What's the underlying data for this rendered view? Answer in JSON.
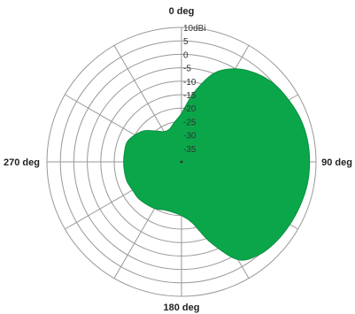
{
  "chart_data": {
    "type": "polar-area",
    "title": "",
    "radial_axis": {
      "unit": "dBi",
      "min": -40,
      "max": 10,
      "step": 5,
      "tick_labels": [
        "10dBi",
        "5",
        "0",
        "-5",
        "-10",
        "-15",
        "-20",
        "-25",
        "-30",
        "-35"
      ]
    },
    "angular_labels": [
      {
        "angle": 0,
        "label": "0 deg"
      },
      {
        "angle": 90,
        "label": "90 deg"
      },
      {
        "angle": 180,
        "label": "180 deg"
      },
      {
        "angle": 270,
        "label": "270 deg"
      }
    ],
    "spokes_every_deg": 30,
    "grid": true,
    "series": [
      {
        "fill_color": "#0ca64a",
        "points": [
          {
            "deg": 0,
            "dbi": -22
          },
          {
            "deg": 10,
            "dbi": -14
          },
          {
            "deg": 20,
            "dbi": -5
          },
          {
            "deg": 30,
            "dbi": 0
          },
          {
            "deg": 40,
            "dbi": 3
          },
          {
            "deg": 50,
            "dbi": 5
          },
          {
            "deg": 60,
            "dbi": 6
          },
          {
            "deg": 70,
            "dbi": 7
          },
          {
            "deg": 80,
            "dbi": 7.5
          },
          {
            "deg": 90,
            "dbi": 7.6
          },
          {
            "deg": 100,
            "dbi": 7.5
          },
          {
            "deg": 110,
            "dbi": 7
          },
          {
            "deg": 120,
            "dbi": 6.5
          },
          {
            "deg": 130,
            "dbi": 6
          },
          {
            "deg": 140,
            "dbi": 5
          },
          {
            "deg": 150,
            "dbi": 2
          },
          {
            "deg": 160,
            "dbi": -8
          },
          {
            "deg": 170,
            "dbi": -17
          },
          {
            "deg": 180,
            "dbi": -20
          },
          {
            "deg": 190,
            "dbi": -21
          },
          {
            "deg": 200,
            "dbi": -21
          },
          {
            "deg": 210,
            "dbi": -20
          },
          {
            "deg": 220,
            "dbi": -19.5
          },
          {
            "deg": 230,
            "dbi": -19
          },
          {
            "deg": 240,
            "dbi": -19
          },
          {
            "deg": 250,
            "dbi": -18.5
          },
          {
            "deg": 260,
            "dbi": -18.5
          },
          {
            "deg": 270,
            "dbi": -18.5
          },
          {
            "deg": 280,
            "dbi": -18.5
          },
          {
            "deg": 290,
            "dbi": -18.5
          },
          {
            "deg": 300,
            "dbi": -20
          },
          {
            "deg": 310,
            "dbi": -22
          },
          {
            "deg": 320,
            "dbi": -25
          },
          {
            "deg": 330,
            "dbi": -27
          },
          {
            "deg": 340,
            "dbi": -27
          },
          {
            "deg": 350,
            "dbi": -25
          }
        ]
      }
    ]
  }
}
